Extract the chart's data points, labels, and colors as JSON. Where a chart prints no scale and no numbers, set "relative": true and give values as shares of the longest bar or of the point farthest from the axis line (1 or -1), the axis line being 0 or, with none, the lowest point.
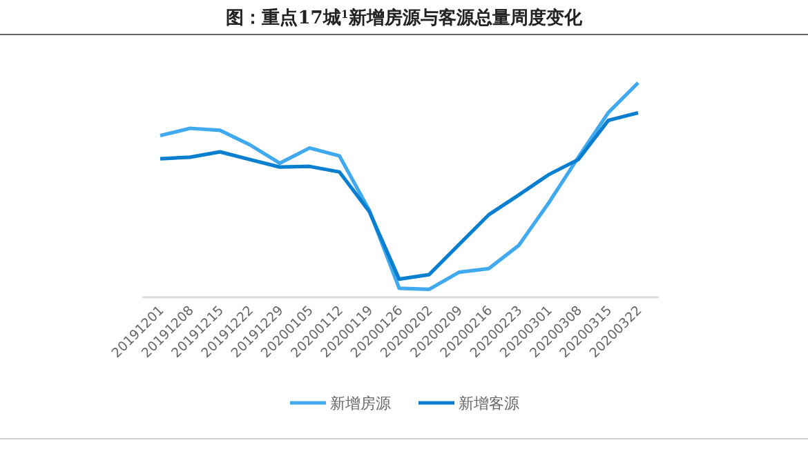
{
  "chart_data": {
    "type": "line",
    "title": "图：重点17城$^{1}$新增房源与客源总量周度变化",
    "relative": true,
    "legend": "bottom",
    "marker": "none",
    "line_style": "solid",
    "categories": [
      "20191201",
      "20191208",
      "20191215",
      "20191222",
      "20191229",
      "20200105",
      "20200112",
      "20200119",
      "20200126",
      "20200202",
      "20200209",
      "20200216",
      "20200223",
      "20200301",
      "20200308",
      "20200315",
      "20200322"
    ],
    "series": [
      {
        "name": "新增房源",
        "color": "#41a9ee",
        "values": [
          0.753,
          0.787,
          0.778,
          0.71,
          0.624,
          0.695,
          0.658,
          0.404,
          0.039,
          0.034,
          0.114,
          0.131,
          0.239,
          0.437,
          0.652,
          0.86,
          1
        ]
      },
      {
        "name": "新增客源",
        "color": "#0a7fd0",
        "values": [
          0.645,
          0.652,
          0.677,
          0.641,
          0.606,
          0.609,
          0.583,
          0.398,
          0.082,
          0.103,
          0.243,
          0.383,
          0.475,
          0.57,
          0.641,
          0.824,
          0.86
        ]
      }
    ]
  }
}
